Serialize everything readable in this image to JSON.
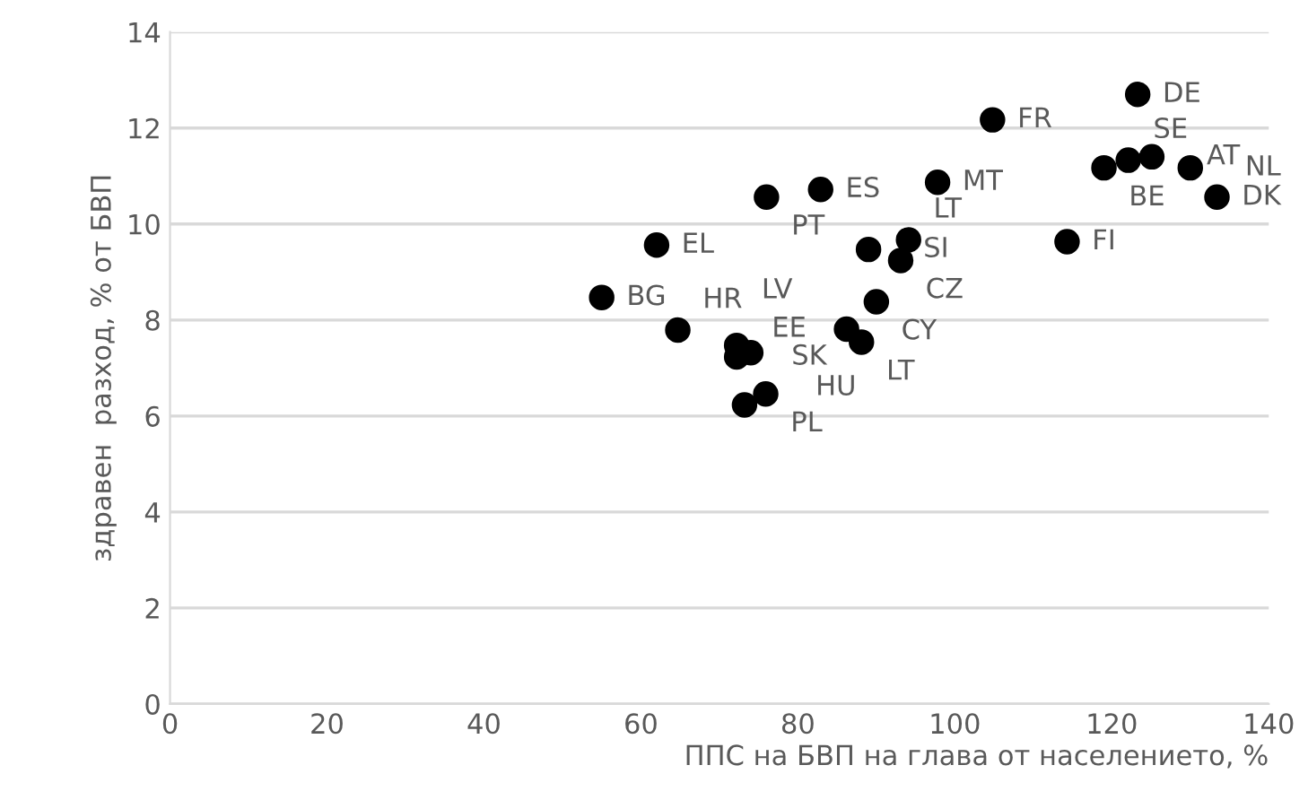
{
  "chart_data": {
    "type": "scatter",
    "xlabel": "ППС на БВП на глава от населението, %",
    "ylabel": "здравен  разход, % от БВП",
    "x": [
      123.3,
      104.8,
      119.0,
      122.1,
      125.1,
      130.0,
      133.4,
      97.8,
      82.9,
      76.0,
      62.0,
      114.3,
      89.0,
      94.1,
      93.1,
      90.0,
      55.0,
      64.7,
      86.2,
      88.1,
      72.2,
      74.0,
      72.2,
      75.9,
      73.2
    ],
    "series": [
      {
        "color": "#000000",
        "values": [
          12.7,
          12.17,
          11.17,
          11.33,
          11.4,
          11.17,
          10.56,
          10.87,
          10.72,
          10.56,
          9.56,
          9.63,
          9.47,
          9.67,
          9.24,
          8.38,
          8.47,
          7.79,
          7.81,
          7.54,
          7.47,
          7.32,
          7.23,
          6.46,
          6.23
        ]
      }
    ],
    "annotations": [
      {
        "text": "DE",
        "x": 123.3,
        "y": 12.7
      },
      {
        "text": "FR",
        "x": 104.8,
        "y": 12.17
      },
      {
        "text": "BE",
        "x": 119.0,
        "y": 11.17
      },
      {
        "text": "SE",
        "x": 122.1,
        "y": 11.33
      },
      {
        "text": "AT",
        "x": 125.1,
        "y": 11.4
      },
      {
        "text": "NL",
        "x": 130.0,
        "y": 11.17
      },
      {
        "text": "DK",
        "x": 133.4,
        "y": 10.56
      },
      {
        "text": "MT",
        "x": 97.8,
        "y": 10.87
      },
      {
        "text": "ES",
        "x": 82.9,
        "y": 10.72
      },
      {
        "text": "PT",
        "x": 76.0,
        "y": 10.56
      },
      {
        "text": "EL",
        "x": 62.0,
        "y": 9.56
      },
      {
        "text": "FI",
        "x": 114.3,
        "y": 9.63
      },
      {
        "text": "SI",
        "x": 89.0,
        "y": 9.47
      },
      {
        "text": "LT",
        "x": 94.1,
        "y": 9.67
      },
      {
        "text": "CZ",
        "x": 93.1,
        "y": 9.24
      },
      {
        "text": "CY",
        "x": 90.0,
        "y": 8.38
      },
      {
        "text": "BG",
        "x": 55.0,
        "y": 8.47
      },
      {
        "text": "HR",
        "x": 64.7,
        "y": 7.79
      },
      {
        "text": "EE",
        "x": 86.2,
        "y": 7.81
      },
      {
        "text": "LT",
        "x": 88.1,
        "y": 7.54
      },
      {
        "text": "LV",
        "x": 72.2,
        "y": 7.47
      },
      {
        "text": "HU",
        "x": 74.0,
        "y": 7.32
      },
      {
        "text": "SK",
        "x": 72.2,
        "y": 7.23
      },
      {
        "text": "PL",
        "x": 75.9,
        "y": 6.46
      }
    ],
    "xlim": [
      0,
      140
    ],
    "xticks": [
      0,
      20,
      40,
      60,
      80,
      100,
      120,
      140
    ],
    "ylim": [
      0,
      14
    ],
    "yticks": [
      0,
      2,
      4,
      6,
      8,
      10,
      12,
      14
    ],
    "grid": "y",
    "marker": "circle"
  }
}
